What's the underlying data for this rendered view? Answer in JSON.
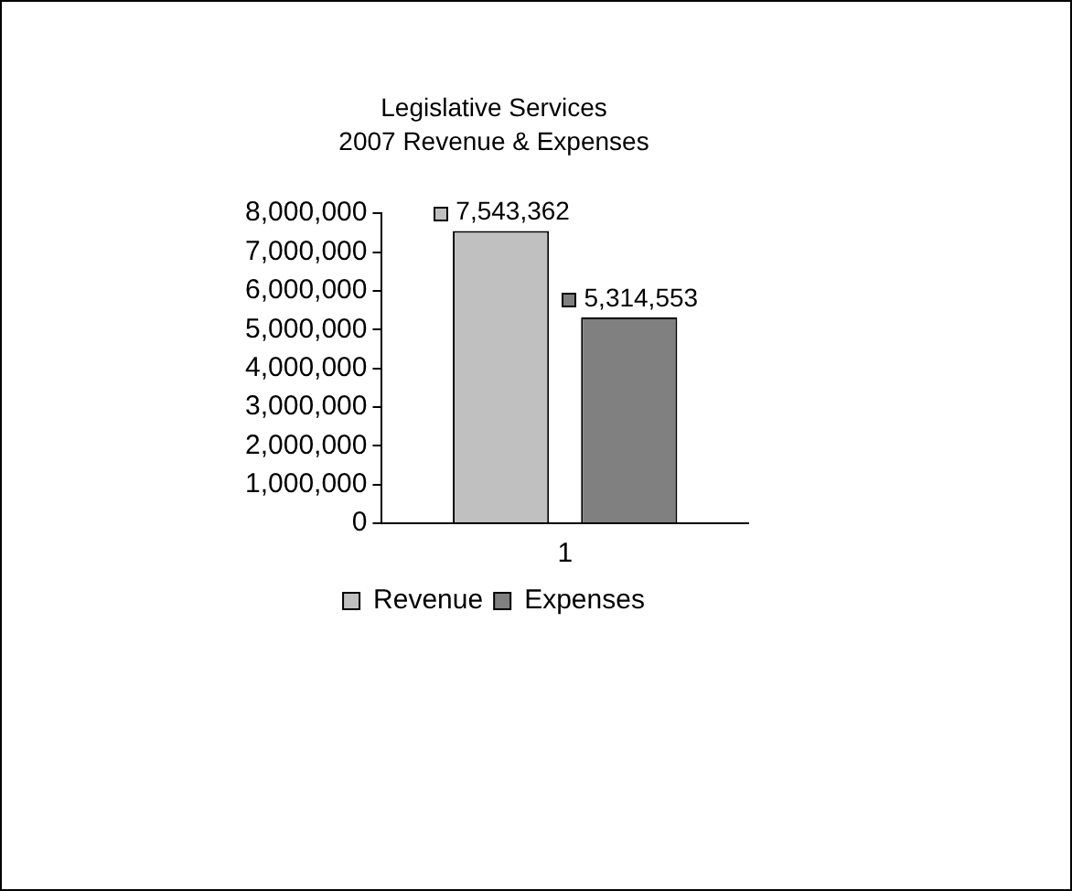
{
  "chart_data": {
    "type": "bar",
    "title": "Legislative Services",
    "subtitle": "2007 Revenue & Expenses",
    "categories": [
      "1"
    ],
    "series": [
      {
        "name": "Revenue",
        "color": "#c0c0c0",
        "values": [
          7543362
        ],
        "value_labels": [
          "7,543,362"
        ]
      },
      {
        "name": "Expenses",
        "color": "#808080",
        "values": [
          5314553
        ],
        "value_labels": [
          "5,314,553"
        ]
      }
    ],
    "ylim": [
      0,
      8000000
    ],
    "yticks": [
      0,
      {
        "value": 1000000,
        "label": "1,000,000"
      },
      {
        "value": 2000000,
        "label": "2,000,000"
      },
      {
        "value": 3000000,
        "label": "3,000,000"
      },
      {
        "value": 4000000,
        "label": "4,000,000"
      },
      {
        "value": 5000000,
        "label": "5,000,000"
      },
      {
        "value": 6000000,
        "label": "6,000,000"
      },
      {
        "value": 7000000,
        "label": "7,000,000"
      },
      {
        "value": 8000000,
        "label": "8,000,000"
      }
    ],
    "grid": false,
    "legend": "bottom",
    "data_labels": true
  }
}
